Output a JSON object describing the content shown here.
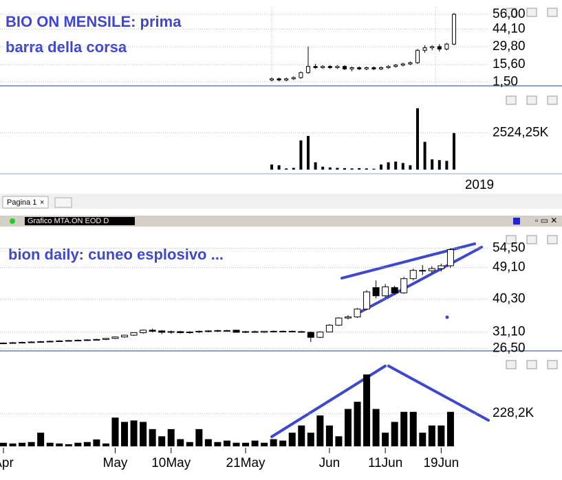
{
  "ui": {
    "tab": "Pagina 1",
    "window_title": "Grafico MTA.ON EOD D"
  },
  "chart_data": [
    {
      "type": "candlestick",
      "title": [
        "BIO ON MENSILE: prima",
        "barra della corsa"
      ],
      "ylim": [
        0,
        62
      ],
      "yticks": [
        {
          "value": 56,
          "label": "56,00"
        },
        {
          "value": 44.1,
          "label": "44,10"
        },
        {
          "value": 29.8,
          "label": "29,80"
        },
        {
          "value": 15.6,
          "label": "15,60"
        },
        {
          "value": 1.5,
          "label": "1,50"
        }
      ],
      "values": [
        [
          3,
          5,
          2,
          4
        ],
        [
          4,
          5,
          2,
          3
        ],
        [
          3,
          5,
          2,
          4
        ],
        [
          4,
          6,
          3,
          5
        ],
        [
          5,
          10,
          4,
          9
        ],
        [
          9,
          30,
          8,
          14
        ],
        [
          14,
          16,
          12,
          13
        ],
        [
          13,
          15,
          12,
          14
        ],
        [
          14,
          15,
          12,
          13
        ],
        [
          13,
          15,
          12,
          14
        ],
        [
          14,
          15,
          11,
          12
        ],
        [
          12,
          14,
          10,
          13
        ],
        [
          13,
          14,
          11,
          12
        ],
        [
          12,
          14,
          11,
          13
        ],
        [
          13,
          14,
          11,
          12
        ],
        [
          12,
          14,
          11,
          13
        ],
        [
          13,
          15,
          12,
          14
        ],
        [
          14,
          16,
          13,
          15
        ],
        [
          15,
          17,
          14,
          16
        ],
        [
          16,
          18,
          15,
          17
        ],
        [
          17,
          28,
          16,
          27
        ],
        [
          27,
          31,
          25,
          29
        ],
        [
          29,
          31,
          27,
          30
        ],
        [
          30,
          32,
          26,
          28
        ],
        [
          28,
          33,
          27,
          32
        ],
        [
          32,
          57,
          31,
          56
        ]
      ]
    },
    {
      "type": "bar",
      "ylim": [
        0,
        5500
      ],
      "yticks": [
        {
          "value": 2524.25,
          "label": "2524,25K"
        }
      ],
      "xlabel": "2019",
      "color": "#000000",
      "values": [
        350,
        300,
        80,
        120,
        2000,
        2300,
        500,
        200,
        150,
        120,
        100,
        80,
        100,
        80,
        60,
        350,
        500,
        550,
        450,
        300,
        4200,
        1900,
        700,
        650,
        600,
        2500
      ]
    },
    {
      "type": "candlestick",
      "title": [
        "bion daily: cuneo esplosivo ..."
      ],
      "ylim": [
        26,
        59
      ],
      "yticks": [
        {
          "value": 54.5,
          "label": "54,50"
        },
        {
          "value": 49.1,
          "label": "49,10"
        },
        {
          "value": 40.3,
          "label": "40,30"
        },
        {
          "value": 31.1,
          "label": "31,10"
        },
        {
          "value": 26.5,
          "label": "26,50"
        }
      ],
      "values": [
        [
          28,
          28.2,
          27.8,
          28
        ],
        [
          28,
          28.3,
          27.8,
          28.1
        ],
        [
          28.1,
          28.4,
          27.9,
          28.2
        ],
        [
          28.2,
          28.5,
          28,
          28.3
        ],
        [
          28.3,
          28.6,
          28.1,
          28.4
        ],
        [
          28.4,
          28.7,
          28.2,
          28.5
        ],
        [
          28.5,
          28.8,
          28.3,
          28.6
        ],
        [
          28.6,
          28.9,
          28.4,
          28.7
        ],
        [
          28.7,
          29,
          28.5,
          28.8
        ],
        [
          28.8,
          29.1,
          28.6,
          28.9
        ],
        [
          28.9,
          29.2,
          28.7,
          29
        ],
        [
          29,
          29.4,
          28.8,
          29.3
        ],
        [
          29.3,
          29.8,
          29.1,
          29.7
        ],
        [
          29.7,
          30.3,
          29.5,
          30.2
        ],
        [
          30.2,
          31,
          30,
          30.9
        ],
        [
          30.9,
          31.8,
          30.6,
          31.6
        ],
        [
          31.6,
          32,
          31,
          31.3
        ],
        [
          31.4,
          31.6,
          30.5,
          31
        ],
        [
          31,
          31.5,
          30.6,
          31.2
        ],
        [
          31.2,
          31.4,
          30.7,
          30.9
        ],
        [
          30.9,
          31.3,
          30.6,
          31.1
        ],
        [
          31.1,
          31.5,
          30.8,
          31.3
        ],
        [
          31.3,
          31.6,
          31,
          31.4
        ],
        [
          31.4,
          31.7,
          31.1,
          31.5
        ],
        [
          31.5,
          31.7,
          31.2,
          31.4
        ],
        [
          31.6,
          31.7,
          30.9,
          31
        ],
        [
          31,
          31.4,
          30.8,
          31.2
        ],
        [
          31.2,
          31.5,
          30.9,
          31
        ],
        [
          31,
          31.4,
          30.8,
          31.3
        ],
        [
          31.3,
          31.5,
          31,
          31.2
        ],
        [
          31.2,
          31.5,
          31,
          31.3
        ],
        [
          31.3,
          31.5,
          31,
          31.2
        ],
        [
          31.2,
          31.4,
          30.9,
          31.1
        ],
        [
          31,
          31.2,
          28.3,
          29.6
        ],
        [
          29.6,
          31.3,
          29.4,
          31.1
        ],
        [
          31.1,
          33.3,
          31,
          33
        ],
        [
          33,
          35.2,
          32.8,
          35
        ],
        [
          35,
          35.8,
          34.6,
          35.3
        ],
        [
          35.3,
          37.8,
          35,
          37.5
        ],
        [
          37.5,
          42.8,
          37.2,
          42.3
        ],
        [
          43.5,
          45.5,
          40.5,
          41.2
        ],
        [
          41.2,
          44.5,
          40.8,
          43.7
        ],
        [
          43.5,
          44,
          41.5,
          42
        ],
        [
          42,
          46.5,
          41.8,
          46
        ],
        [
          46,
          48.8,
          45.5,
          48.3
        ],
        [
          48.3,
          49.8,
          47,
          48.2
        ],
        [
          48.2,
          49.5,
          47.5,
          48.8
        ],
        [
          48.8,
          50.2,
          48,
          49.6
        ],
        [
          49.6,
          54.5,
          49,
          54.1
        ]
      ]
    },
    {
      "type": "bar",
      "ylim": [
        0,
        640
      ],
      "yticks": [
        {
          "value": 228.2,
          "label": "228,2K"
        }
      ],
      "color": "#000000",
      "categories": [
        "Apr",
        null,
        null,
        null,
        null,
        null,
        null,
        null,
        null,
        null,
        null,
        null,
        "May",
        null,
        null,
        null,
        null,
        null,
        "10May",
        null,
        null,
        null,
        null,
        null,
        null,
        null,
        "21May",
        null,
        null,
        null,
        null,
        null,
        null,
        null,
        null,
        "Jun",
        null,
        null,
        null,
        null,
        null,
        "11Jun",
        null,
        null,
        null,
        null,
        null,
        "19Jun",
        null
      ],
      "values": [
        25,
        20,
        25,
        30,
        95,
        25,
        20,
        15,
        25,
        30,
        48,
        20,
        200,
        170,
        180,
        170,
        120,
        70,
        120,
        50,
        30,
        120,
        50,
        30,
        40,
        25,
        25,
        40,
        25,
        50,
        40,
        95,
        145,
        95,
        215,
        145,
        70,
        260,
        310,
        500,
        260,
        95,
        170,
        240,
        240,
        95,
        145,
        145,
        240
      ]
    }
  ]
}
